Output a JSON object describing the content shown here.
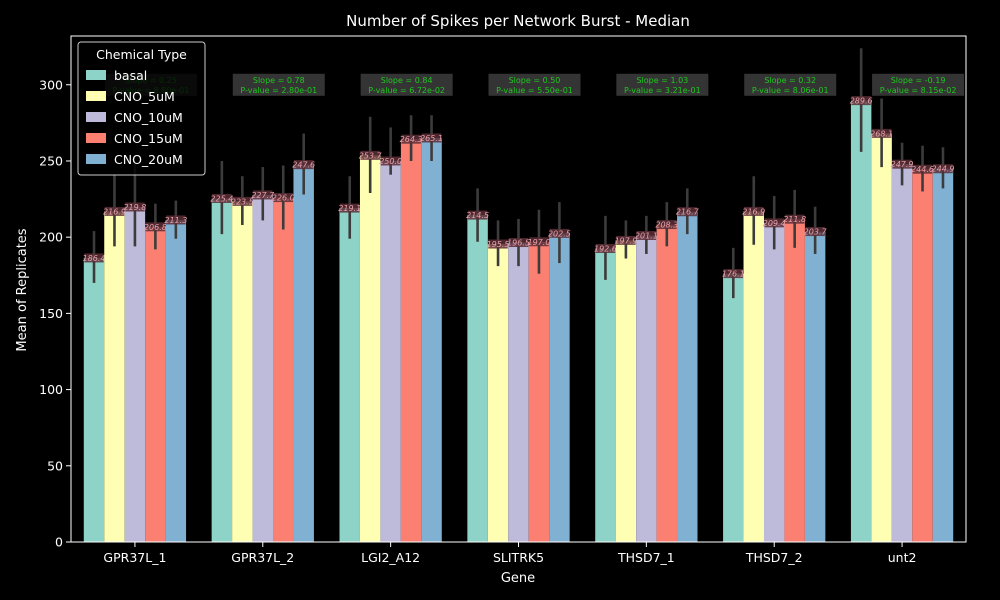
{
  "chart_data": {
    "type": "bar",
    "title": "Number of Spikes per Network Burst - Median",
    "xlabel": "Gene",
    "ylabel": "Mean of Replicates",
    "ylim": [
      0,
      332
    ],
    "yticks": [
      0,
      50,
      100,
      150,
      200,
      250,
      300
    ],
    "grid": false,
    "legend_title": "Chemical Type",
    "legend_position": "top-left",
    "categories": [
      "GPR37L_1",
      "GPR37L_2",
      "LGI2_A12",
      "SLITRK5",
      "THSD7_1",
      "THSD7_2",
      "unt2"
    ],
    "series": [
      {
        "name": "basal",
        "color": "#8dd3c7",
        "values": [
          186.4,
          225.4,
          219.1,
          214.5,
          192.6,
          176.1,
          289.6
        ],
        "labels": [
          "186.4",
          "225.4",
          "219.1",
          "214.5",
          "192.6",
          "176.1",
          "289.6"
        ],
        "err_low": [
          170,
          202,
          199,
          197,
          172,
          160,
          256
        ],
        "err_high": [
          204,
          250,
          240,
          232,
          214,
          193,
          324
        ]
      },
      {
        "name": "CNO_5uM",
        "color": "#ffffb3",
        "values": [
          216.9,
          223.5,
          253.7,
          195.5,
          197.9,
          216.9,
          268.1
        ],
        "labels": [
          "216.9",
          "223.5",
          "253.7",
          "195.5",
          "197.9",
          "216.9",
          "268.1"
        ],
        "err_low": [
          194,
          208,
          229,
          181,
          186,
          195,
          246
        ],
        "err_high": [
          241,
          240,
          279,
          211,
          211,
          240,
          291
        ]
      },
      {
        "name": "CNO_10uM",
        "color": "#bebada",
        "values": [
          219.8,
          227.7,
          250.0,
          196.5,
          201.1,
          209.4,
          247.9
        ],
        "labels": [
          "219.8",
          "227.7",
          "250.0",
          "196.5",
          "201.1",
          "209.4",
          "247.9"
        ],
        "err_low": [
          194,
          211,
          241,
          181,
          189,
          192,
          234
        ],
        "err_high": [
          248,
          246,
          272,
          212,
          214,
          227,
          262
        ]
      },
      {
        "name": "CNO_15uM",
        "color": "#fb8072",
        "values": [
          206.8,
          226.0,
          264.3,
          197.0,
          208.3,
          211.8,
          244.6
        ],
        "labels": [
          "206.8",
          "226.0",
          "264.3",
          "197.0",
          "208.3",
          "211.8",
          "244.6"
        ],
        "err_low": [
          192,
          205,
          250,
          176,
          194,
          193,
          230
        ],
        "err_high": [
          222,
          247,
          280,
          218,
          223,
          231,
          260
        ]
      },
      {
        "name": "CNO_20uM",
        "color": "#80b1d3",
        "values": [
          211.3,
          247.6,
          265.1,
          202.5,
          216.7,
          203.7,
          244.9
        ],
        "labels": [
          "211.3",
          "247.6",
          "265.1",
          "202.5",
          "216.7",
          "203.7",
          "244.9"
        ],
        "err_low": [
          199,
          228,
          250,
          183,
          202,
          189,
          232
        ],
        "err_high": [
          224,
          268,
          280,
          223,
          232,
          220,
          259
        ]
      }
    ],
    "annotations": [
      {
        "category": "GPR37L_1",
        "line1": "Slope = 0.25",
        "line2": "P-value = 8.80e-01"
      },
      {
        "category": "GPR37L_2",
        "line1": "Slope = 0.78",
        "line2": "P-value = 2.80e-01"
      },
      {
        "category": "LGI2_A12",
        "line1": "Slope = 0.84",
        "line2": "P-value = 6.72e-02"
      },
      {
        "category": "SLITRK5",
        "line1": "Slope = 0.50",
        "line2": "P-value = 5.50e-01"
      },
      {
        "category": "THSD7_1",
        "line1": "Slope = 1.03",
        "line2": "P-value = 3.21e-01"
      },
      {
        "category": "THSD7_2",
        "line1": "Slope = 0.32",
        "line2": "P-value = 8.06e-01"
      },
      {
        "category": "unt2",
        "line1": "Slope = -0.19",
        "line2": "P-value = 8.15e-02"
      }
    ],
    "annotation_y": 300
  }
}
